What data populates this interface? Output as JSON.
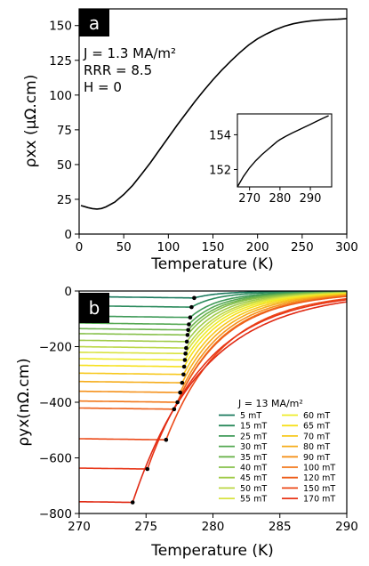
{
  "chart_data": [
    {
      "type": "line",
      "panel": "a",
      "xlabel": "Temperature (K)",
      "ylabel": "ρxx (μΩ.cm)",
      "xlim": [
        0,
        300
      ],
      "ylim": [
        0,
        162
      ],
      "xticks": [
        0,
        50,
        100,
        150,
        200,
        250,
        300
      ],
      "yticks": [
        0,
        25,
        50,
        75,
        100,
        125,
        150
      ],
      "annotations": [
        "J = 1.3 MA/m²",
        "RRR = 8.5",
        "H = 0"
      ],
      "series": [
        {
          "x": [
            2,
            5,
            10,
            15,
            20,
            25,
            30,
            40,
            50,
            60,
            70,
            80,
            90,
            100,
            110,
            120,
            130,
            140,
            150,
            160,
            170,
            180,
            190,
            200,
            210,
            220,
            230,
            240,
            250,
            260,
            270,
            280,
            290,
            300
          ],
          "values": [
            20.5,
            20,
            19,
            18.3,
            18,
            18.4,
            19.5,
            23,
            28.5,
            35,
            43,
            51.5,
            60.5,
            69.5,
            78.5,
            87,
            95.5,
            103.5,
            111,
            118,
            124.5,
            130.5,
            136,
            140.5,
            144,
            147,
            149.5,
            151.3,
            152.5,
            153.4,
            153.9,
            154.3,
            154.6,
            155
          ]
        }
      ],
      "inset": {
        "xlim": [
          266,
          297
        ],
        "ylim": [
          151,
          155.2
        ],
        "xticks": [
          270,
          280,
          290
        ],
        "yticks": [
          152,
          154
        ],
        "x": [
          266,
          268,
          270,
          272,
          274,
          276,
          278,
          279,
          280,
          282,
          284,
          286,
          288,
          290,
          292,
          294,
          296
        ],
        "values": [
          151.0,
          151.6,
          152.1,
          152.5,
          152.85,
          153.15,
          153.45,
          153.6,
          153.72,
          153.92,
          154.1,
          154.27,
          154.43,
          154.6,
          154.77,
          154.94,
          155.1
        ]
      }
    },
    {
      "type": "line",
      "panel": "b",
      "xlabel": "Temperature (K)",
      "ylabel": "ρyx(nΩ.cm)",
      "xlim": [
        270,
        290
      ],
      "ylim": [
        -800,
        0
      ],
      "xticks": [
        270,
        275,
        280,
        285,
        290
      ],
      "yticks": [
        0,
        -200,
        -400,
        -600,
        -800
      ],
      "legend_title": "J = 13 MA/m²",
      "legend_position": "lower-right",
      "series": [
        {
          "name": "5 mT",
          "color": "#1b7a5e",
          "low": -25,
          "tc": 278.6
        },
        {
          "name": "15 mT",
          "color": "#2a8a5c",
          "low": -58,
          "tc": 278.4
        },
        {
          "name": "25 mT",
          "color": "#3f9a58",
          "low": -95,
          "tc": 278.3
        },
        {
          "name": "30 mT",
          "color": "#55a853",
          "low": -120,
          "tc": 278.2
        },
        {
          "name": "35 mT",
          "color": "#6db44e",
          "low": -140,
          "tc": 278.15
        },
        {
          "name": "40 mT",
          "color": "#86c04a",
          "low": -158,
          "tc": 278.1
        },
        {
          "name": "45 mT",
          "color": "#a0cb48",
          "low": -182,
          "tc": 278.05
        },
        {
          "name": "50 mT",
          "color": "#bcd746",
          "low": -205,
          "tc": 278.0
        },
        {
          "name": "55 mT",
          "color": "#d8e340",
          "low": -225,
          "tc": 277.95
        },
        {
          "name": "60 mT",
          "color": "#eeeb2a",
          "low": -248,
          "tc": 277.9
        },
        {
          "name": "65 mT",
          "color": "#f6e01e",
          "low": -272,
          "tc": 277.85
        },
        {
          "name": "70 mT",
          "color": "#f7c81c",
          "low": -300,
          "tc": 277.8
        },
        {
          "name": "80 mT",
          "color": "#f6ad1c",
          "low": -330,
          "tc": 277.7
        },
        {
          "name": "90 mT",
          "color": "#f5921c",
          "low": -365,
          "tc": 277.55
        },
        {
          "name": "100 mT",
          "color": "#f2781b",
          "low": -400,
          "tc": 277.35
        },
        {
          "name": "120 mT",
          "color": "#ee5e1a",
          "low": -425,
          "tc": 277.1
        },
        {
          "name": "150 mT",
          "color": "#ec4a19",
          "low": -535,
          "tc": 276.5
        },
        {
          "name": "170 mT",
          "color": "#e83517",
          "low": -640,
          "tc": 275.1
        }
      ],
      "extra_series": [
        {
          "color": "#e02a14",
          "low": -760,
          "tc": 274.0
        }
      ],
      "points": [
        {
          "x": 278.6,
          "y": -25
        },
        {
          "x": 278.4,
          "y": -58
        },
        {
          "x": 278.3,
          "y": -95
        },
        {
          "x": 278.2,
          "y": -120
        },
        {
          "x": 278.15,
          "y": -140
        },
        {
          "x": 278.1,
          "y": -158
        },
        {
          "x": 278.05,
          "y": -182
        },
        {
          "x": 278.0,
          "y": -205
        },
        {
          "x": 277.95,
          "y": -225
        },
        {
          "x": 277.9,
          "y": -248
        },
        {
          "x": 277.85,
          "y": -272
        },
        {
          "x": 277.8,
          "y": -300
        },
        {
          "x": 277.7,
          "y": -330
        },
        {
          "x": 277.55,
          "y": -365
        },
        {
          "x": 277.35,
          "y": -400
        },
        {
          "x": 277.1,
          "y": -425
        },
        {
          "x": 276.5,
          "y": -535
        },
        {
          "x": 275.1,
          "y": -640
        },
        {
          "x": 274.0,
          "y": -760
        }
      ]
    }
  ]
}
